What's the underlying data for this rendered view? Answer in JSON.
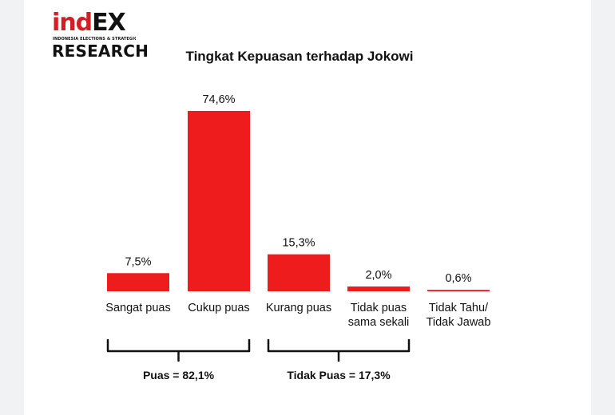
{
  "brand": {
    "logo_word_lower": "ind",
    "logo_word_upper": "EX",
    "logo_tagline": "INDONESIA ELECTIONS & STRATEGIC",
    "logo_research": "RESEARCH",
    "accent_color": "#d11f26",
    "text_color": "#111111"
  },
  "chart_data": {
    "type": "bar",
    "title": "Tingkat Kepuasan terhadap Jokowi",
    "categories": [
      [
        "Sangat puas"
      ],
      [
        "Cukup puas"
      ],
      [
        "Kurang puas"
      ],
      [
        "Tidak puas",
        "sama sekali"
      ],
      [
        "Tidak Tahu/",
        "Tidak Jawab"
      ]
    ],
    "values": [
      7.5,
      74.6,
      15.3,
      2.0,
      0.6
    ],
    "value_labels": [
      "7,5%",
      "74,6%",
      "15,3%",
      "2,0%",
      "0,6%"
    ],
    "ylim": [
      0,
      80
    ],
    "grid": false,
    "bar_color": "#ee1c1c",
    "groups": [
      {
        "label": "Puas = 82,1%",
        "from": 0,
        "to": 1
      },
      {
        "label": "Tidak Puas = 17,3%",
        "from": 2,
        "to": 3
      }
    ]
  }
}
